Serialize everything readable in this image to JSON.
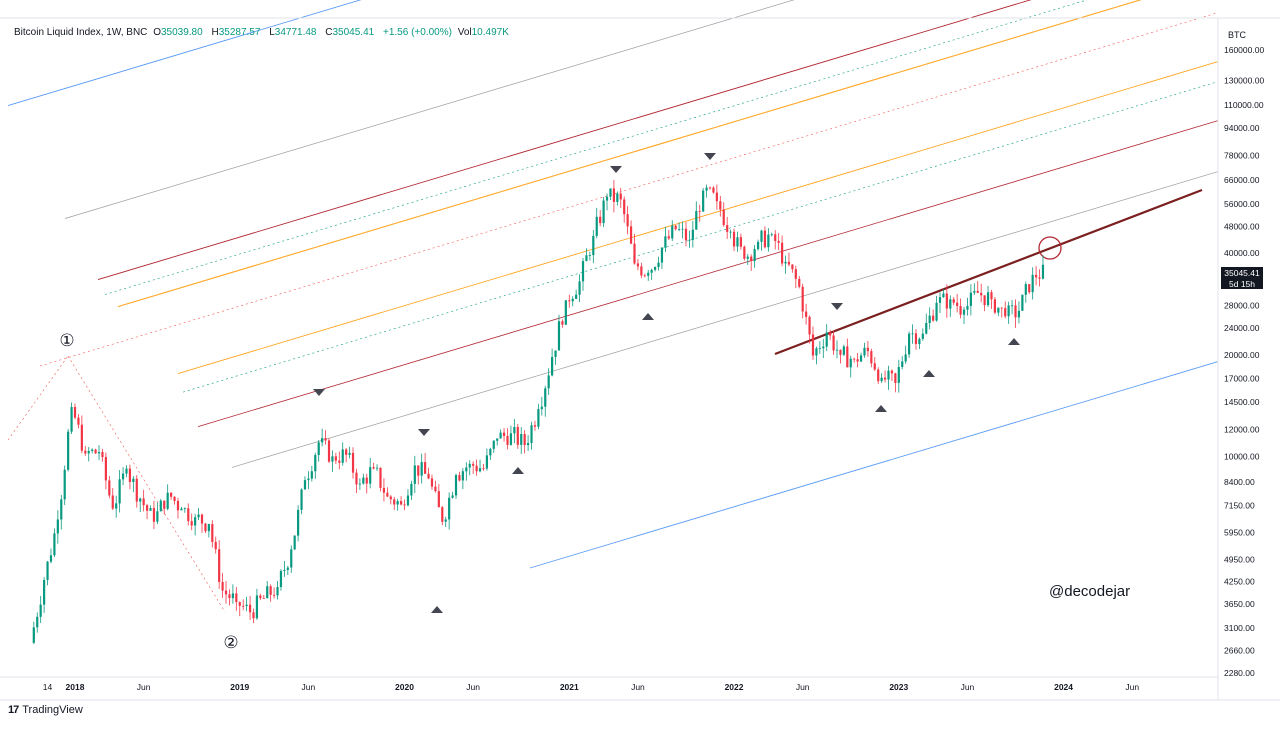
{
  "legend": {
    "symbol": "Bitcoin Liquid Index, 1W, BNC",
    "open_label": "O",
    "open": "35039.80",
    "high_label": "H",
    "high": "35287.57",
    "low_label": "L",
    "low": "34771.48",
    "close_label": "C",
    "close": "35045.41",
    "change": "+1.56 (+0.00%)",
    "vol_label": "Vol",
    "vol": "10.497K"
  },
  "currency": "BTC",
  "last_price": "35045.41",
  "countdown": "5d 15h",
  "watermark": "@decodejar",
  "branding": "TradingView",
  "branding_logo": "17",
  "markers": {
    "peak1": "①",
    "trough2": "②"
  },
  "colors": {
    "up": "#089981",
    "down": "#f23645",
    "channel_outer": "#5b9cf6",
    "channel_grey": "#9e9e9e",
    "channel_red": "#b22833",
    "channel_orange": "#ffa726",
    "channel_pink": "#ef5350",
    "trendline": "#7b1f1f",
    "arrow": "#434651"
  },
  "chart_data": {
    "type": "candlestick",
    "title": "",
    "scale": "log",
    "y_ticks": [
      "160000.00",
      "130000.00",
      "110000.00",
      "94000.00",
      "78000.00",
      "66000.00",
      "56000.00",
      "48000.00",
      "40000.00",
      "28000.00",
      "24000.00",
      "20000.00",
      "17000.00",
      "14500.00",
      "12000.00",
      "10000.00",
      "8400.00",
      "7150.00",
      "5950.00",
      "4950.00",
      "4250.00",
      "3650.00",
      "3100.00",
      "2660.00",
      "2280.00"
    ],
    "x_ticks": [
      "14",
      "2018",
      "Jun",
      "2019",
      "Jun",
      "2020",
      "Jun",
      "2021",
      "Jun",
      "2022",
      "Jun",
      "2023",
      "Jun",
      "2024",
      "Jun"
    ],
    "ylim": [
      2230,
      175000
    ],
    "series": [
      {
        "x": [
          "2017-10",
          "2017-11",
          "2017-12",
          "2018-01",
          "2018-02",
          "2018-03",
          "2018-04",
          "2018-05",
          "2018-06",
          "2018-07",
          "2018-08",
          "2018-09",
          "2018-10",
          "2018-11",
          "2018-12",
          "2019-01",
          "2019-02",
          "2019-03",
          "2019-04",
          "2019-05",
          "2019-06",
          "2019-07",
          "2019-08",
          "2019-09",
          "2019-10",
          "2019-11",
          "2019-12",
          "2020-01",
          "2020-02",
          "2020-03",
          "2020-04",
          "2020-05",
          "2020-06",
          "2020-07",
          "2020-08",
          "2020-09",
          "2020-10",
          "2020-11",
          "2020-12",
          "2021-01",
          "2021-02",
          "2021-03",
          "2021-04",
          "2021-05",
          "2021-06",
          "2021-07",
          "2021-08",
          "2021-09",
          "2021-10",
          "2021-11",
          "2021-12",
          "2022-01",
          "2022-02",
          "2022-03",
          "2022-04",
          "2022-05",
          "2022-06",
          "2022-07",
          "2022-08",
          "2022-09",
          "2022-10",
          "2022-11",
          "2022-12",
          "2023-01",
          "2023-02",
          "2023-03",
          "2023-04",
          "2023-05",
          "2023-06",
          "2023-07",
          "2023-08",
          "2023-09",
          "2023-10",
          "2023-11"
        ],
        "close": [
          4300,
          6500,
          14000,
          10200,
          10300,
          7000,
          9200,
          7500,
          6400,
          7800,
          7000,
          6600,
          6300,
          4000,
          3700,
          3450,
          3800,
          4100,
          5300,
          8500,
          11000,
          10000,
          10100,
          8300,
          9200,
          7600,
          7200,
          9400,
          8600,
          6400,
          8800,
          9500,
          9200,
          11300,
          11700,
          10800,
          13800,
          19700,
          29000,
          33000,
          45000,
          58800,
          57700,
          37300,
          35000,
          41500,
          47100,
          43800,
          61300,
          57000,
          46300,
          38500,
          43200,
          45500,
          37700,
          31800,
          19900,
          23300,
          20000,
          19400,
          20500,
          17100,
          16500,
          23100,
          23100,
          28500,
          29200,
          27200,
          30500,
          29200,
          26000,
          27000,
          34500,
          35045.41
        ]
      }
    ],
    "annotations": [
      "①",
      "②",
      "@decodejar"
    ]
  }
}
